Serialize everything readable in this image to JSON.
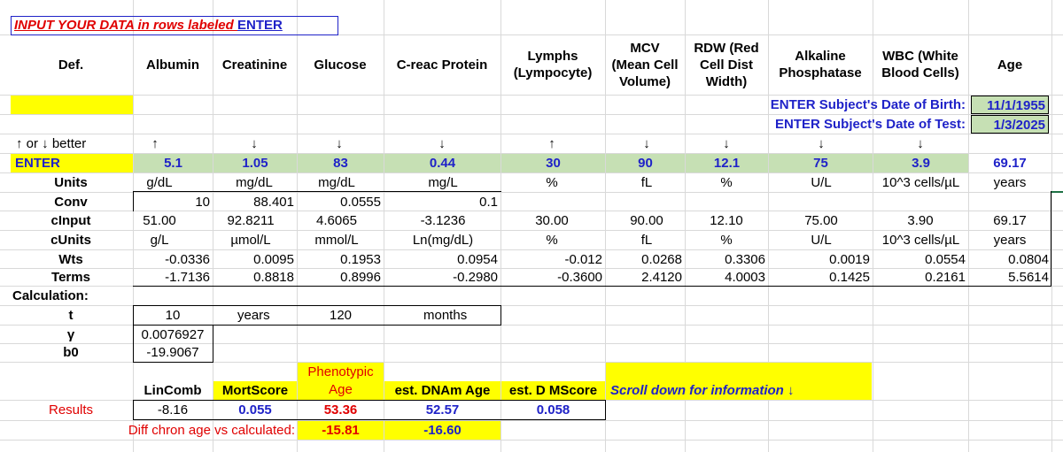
{
  "title": {
    "prefix": "INPUT YOUR DATA in rows labeled ",
    "enter": "ENTER"
  },
  "headers": {
    "def": "Def.",
    "albumin": "Albumin",
    "creatinine": "Creatinine",
    "glucose": "Glucose",
    "crp": "C-reac Protein",
    "lymphs_1": "Lymphs",
    "lymphs_2": "(Lympocyte)",
    "mcv_1": "MCV",
    "mcv_2": "(Mean Cell",
    "mcv_3": "Volume)",
    "rdw_1": "RDW (Red",
    "rdw_2": "Cell Dist",
    "rdw_3": "Width)",
    "alk_1": "Alkaline",
    "alk_2": "Phosphatase",
    "wbc_1": "WBC (White",
    "wbc_2": "Blood Cells)",
    "age": "Age"
  },
  "dob": {
    "label": "ENTER Subject's Date of Birth:",
    "value": "11/1/1955"
  },
  "dot": {
    "label": "ENTER Subject's Date of Test:",
    "value": "1/3/2025"
  },
  "rows": {
    "better": {
      "label": "↑ or ↓ better",
      "values": [
        "↑",
        "↓",
        "↓",
        "↓",
        "↑",
        "↓",
        "↓",
        "↓",
        "↓"
      ]
    },
    "enter": {
      "label": "ENTER",
      "values": [
        "5.1",
        "1.05",
        "83",
        "0.44",
        "30",
        "90",
        "12.1",
        "75",
        "3.9"
      ],
      "age": "69.17"
    },
    "units": {
      "label": "Units",
      "values": [
        "g/dL",
        "mg/dL",
        "mg/dL",
        "mg/L",
        "%",
        "fL",
        "%",
        "U/L",
        "10^3 cells/µL"
      ],
      "age": "years"
    },
    "conv": {
      "label": "Conv",
      "values": [
        "10",
        "88.401",
        "0.0555",
        "0.1"
      ]
    },
    "cinput": {
      "label": "cInput",
      "values": [
        "51.00",
        "92.8211",
        "4.6065",
        "-3.1236",
        "30.00",
        "90.00",
        "12.10",
        "75.00",
        "3.90"
      ],
      "age": "69.17"
    },
    "cunits": {
      "label": "cUnits",
      "values": [
        "g/L",
        "µmol/L",
        "mmol/L",
        "Ln(mg/dL)",
        "%",
        "fL",
        "%",
        "U/L",
        "10^3 cells/µL"
      ],
      "age": "years"
    },
    "wts": {
      "label": "Wts",
      "values": [
        "-0.0336",
        "0.0095",
        "0.1953",
        "0.0954",
        "-0.012",
        "0.0268",
        "0.3306",
        "0.0019",
        "0.0554"
      ],
      "age": "0.0804"
    },
    "terms": {
      "label": "Terms",
      "values": [
        "-1.7136",
        "0.8818",
        "0.8996",
        "-0.2980",
        "-0.3600",
        "2.4120",
        "4.0003",
        "0.1425",
        "0.2161"
      ],
      "age": "5.5614"
    }
  },
  "calc": {
    "label": "Calculation:",
    "t_label": "t",
    "t_value": "10",
    "t_unit": "years",
    "t_value2": "120",
    "t_unit2": "months",
    "gamma_label": "γ",
    "gamma_value": "0.0076927",
    "b0_label": "b0",
    "b0_value": "-19.9067"
  },
  "results": {
    "lincomb_label": "LinComb",
    "mortscore_label": "MortScore",
    "pheno_label_1": "Phenotypic",
    "pheno_label_2": "Age",
    "dnam_label": "est. DNAm Age",
    "dmscore_label": "est. D MScore",
    "scroll_note": "Scroll down for information ↓",
    "label": "Results",
    "lincomb": "-8.16",
    "mortscore": "0.055",
    "pheno_age": "53.36",
    "dnam_age": "52.57",
    "dmscore": "0.058",
    "diff_label": "Diff chron age vs calculated:",
    "diff_pheno": "-15.81",
    "diff_dnam": "-16.60"
  }
}
